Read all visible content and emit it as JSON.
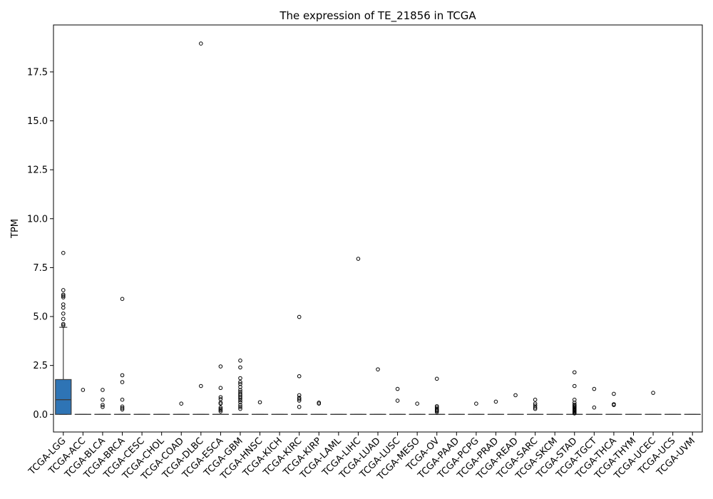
{
  "chart_data": {
    "type": "boxplot",
    "title": "The expression of TE_21856 in TCGA",
    "xlabel": "",
    "ylabel": "TPM",
    "ylim": [
      -0.9,
      19.9
    ],
    "yticks": [
      "0.0",
      "2.5",
      "5.0",
      "7.5",
      "10.0",
      "12.5",
      "15.0",
      "17.5"
    ],
    "grid": false,
    "box_color": "#2e74b5",
    "categories": [
      "TCGA-LGG",
      "TCGA-ACC",
      "TCGA-BLCA",
      "TCGA-BRCA",
      "TCGA-CESC",
      "TCGA-CHOL",
      "TCGA-COAD",
      "TCGA-DLBC",
      "TCGA-ESCA",
      "TCGA-GBM",
      "TCGA-HNSC",
      "TCGA-KICH",
      "TCGA-KIRC",
      "TCGA-KIRP",
      "TCGA-LAML",
      "TCGA-LIHC",
      "TCGA-LUAD",
      "TCGA-LUSC",
      "TCGA-MESO",
      "TCGA-OV",
      "TCGA-PAAD",
      "TCGA-PCPG",
      "TCGA-PRAD",
      "TCGA-READ",
      "TCGA-SARC",
      "TCGA-SKCM",
      "TCGA-STAD",
      "TCGA-TGCT",
      "TCGA-THCA",
      "TCGA-THYM",
      "TCGA-UCEC",
      "TCGA-UCS",
      "TCGA-UVM"
    ],
    "boxes": [
      {
        "q1": 0.0,
        "median": 0.75,
        "q3": 1.78,
        "whisker_low": 0.0,
        "whisker_high": 4.45,
        "outliers": [
          4.55,
          4.62,
          4.88,
          5.15,
          5.45,
          5.62,
          5.98,
          6.05,
          6.12,
          6.35,
          8.25
        ]
      },
      {
        "q1": 0,
        "median": 0,
        "q3": 0,
        "whisker_low": 0,
        "whisker_high": 0,
        "outliers": [
          1.25
        ]
      },
      {
        "q1": 0,
        "median": 0,
        "q3": 0,
        "whisker_low": 0,
        "whisker_high": 0,
        "outliers": [
          0.38,
          0.48,
          0.75,
          1.25
        ]
      },
      {
        "q1": 0,
        "median": 0,
        "q3": 0,
        "whisker_low": 0,
        "whisker_high": 0,
        "outliers": [
          0.25,
          0.32,
          0.4,
          0.75,
          1.65,
          2.0,
          5.9
        ]
      },
      {
        "q1": 0,
        "median": 0,
        "q3": 0,
        "whisker_low": 0,
        "whisker_high": 0,
        "outliers": []
      },
      {
        "q1": 0,
        "median": 0,
        "q3": 0,
        "whisker_low": 0,
        "whisker_high": 0,
        "outliers": []
      },
      {
        "q1": 0,
        "median": 0,
        "q3": 0,
        "whisker_low": 0,
        "whisker_high": 0,
        "outliers": [
          0.55
        ]
      },
      {
        "q1": 0,
        "median": 0,
        "q3": 0,
        "whisker_low": 0,
        "whisker_high": 0,
        "outliers": [
          1.45,
          18.95
        ]
      },
      {
        "q1": 0,
        "median": 0,
        "q3": 0,
        "whisker_low": 0,
        "whisker_high": 0,
        "outliers": [
          0.15,
          0.22,
          0.28,
          0.35,
          0.55,
          0.6,
          0.78,
          0.88,
          1.35,
          2.45
        ]
      },
      {
        "q1": 0,
        "median": 0,
        "q3": 0,
        "whisker_low": 0,
        "whisker_high": 0,
        "outliers": [
          0.28,
          0.38,
          0.48,
          0.62,
          0.72,
          0.82,
          0.9,
          0.98,
          1.05,
          1.15,
          1.25,
          1.4,
          1.55,
          1.65,
          1.85,
          2.4,
          2.75
        ]
      },
      {
        "q1": 0,
        "median": 0,
        "q3": 0,
        "whisker_low": 0,
        "whisker_high": 0,
        "outliers": [
          0.62
        ]
      },
      {
        "q1": 0,
        "median": 0,
        "q3": 0,
        "whisker_low": 0,
        "whisker_high": 0,
        "outliers": []
      },
      {
        "q1": 0,
        "median": 0,
        "q3": 0,
        "whisker_low": 0,
        "whisker_high": 0,
        "outliers": [
          0.38,
          0.7,
          0.78,
          0.85,
          0.98,
          1.95,
          4.98
        ]
      },
      {
        "q1": 0,
        "median": 0,
        "q3": 0,
        "whisker_low": 0,
        "whisker_high": 0,
        "outliers": [
          0.55,
          0.6
        ]
      },
      {
        "q1": 0,
        "median": 0,
        "q3": 0,
        "whisker_low": 0,
        "whisker_high": 0,
        "outliers": []
      },
      {
        "q1": 0,
        "median": 0,
        "q3": 0,
        "whisker_low": 0,
        "whisker_high": 0,
        "outliers": [
          7.95
        ]
      },
      {
        "q1": 0,
        "median": 0,
        "q3": 0,
        "whisker_low": 0,
        "whisker_high": 0,
        "outliers": [
          2.3
        ]
      },
      {
        "q1": 0,
        "median": 0,
        "q3": 0,
        "whisker_low": 0,
        "whisker_high": 0,
        "outliers": [
          0.7,
          1.3
        ]
      },
      {
        "q1": 0,
        "median": 0,
        "q3": 0,
        "whisker_low": 0,
        "whisker_high": 0,
        "outliers": [
          0.55
        ]
      },
      {
        "q1": 0,
        "median": 0,
        "q3": 0,
        "whisker_low": 0,
        "whisker_high": 0,
        "outliers": [
          0.12,
          0.18,
          0.22,
          0.28,
          0.35,
          0.42,
          1.82
        ]
      },
      {
        "q1": 0,
        "median": 0,
        "q3": 0,
        "whisker_low": 0,
        "whisker_high": 0,
        "outliers": []
      },
      {
        "q1": 0,
        "median": 0,
        "q3": 0,
        "whisker_low": 0,
        "whisker_high": 0,
        "outliers": [
          0.55
        ]
      },
      {
        "q1": 0,
        "median": 0,
        "q3": 0,
        "whisker_low": 0,
        "whisker_high": 0,
        "outliers": [
          0.65
        ]
      },
      {
        "q1": 0,
        "median": 0,
        "q3": 0,
        "whisker_low": 0,
        "whisker_high": 0,
        "outliers": [
          0.98
        ]
      },
      {
        "q1": 0,
        "median": 0,
        "q3": 0,
        "whisker_low": 0,
        "whisker_high": 0,
        "outliers": [
          0.28,
          0.35,
          0.45,
          0.55,
          0.75
        ]
      },
      {
        "q1": 0,
        "median": 0,
        "q3": 0,
        "whisker_low": 0,
        "whisker_high": 0,
        "outliers": []
      },
      {
        "q1": 0,
        "median": 0,
        "q3": 0,
        "whisker_low": 0,
        "whisker_high": 0,
        "outliers": [
          0.05,
          0.1,
          0.14,
          0.18,
          0.22,
          0.26,
          0.3,
          0.35,
          0.4,
          0.45,
          0.5,
          0.6,
          0.75,
          1.45,
          2.15
        ]
      },
      {
        "q1": 0,
        "median": 0,
        "q3": 0,
        "whisker_low": 0,
        "whisker_high": 0,
        "outliers": [
          0.35,
          1.3
        ]
      },
      {
        "q1": 0,
        "median": 0,
        "q3": 0,
        "whisker_low": 0,
        "whisker_high": 0,
        "outliers": [
          0.48,
          0.52,
          1.05
        ]
      },
      {
        "q1": 0,
        "median": 0,
        "q3": 0,
        "whisker_low": 0,
        "whisker_high": 0,
        "outliers": []
      },
      {
        "q1": 0,
        "median": 0,
        "q3": 0,
        "whisker_low": 0,
        "whisker_high": 0,
        "outliers": [
          1.1
        ]
      },
      {
        "q1": 0,
        "median": 0,
        "q3": 0,
        "whisker_low": 0,
        "whisker_high": 0,
        "outliers": []
      },
      {
        "q1": 0,
        "median": 0,
        "q3": 0,
        "whisker_low": 0,
        "whisker_high": 0,
        "outliers": []
      }
    ]
  }
}
